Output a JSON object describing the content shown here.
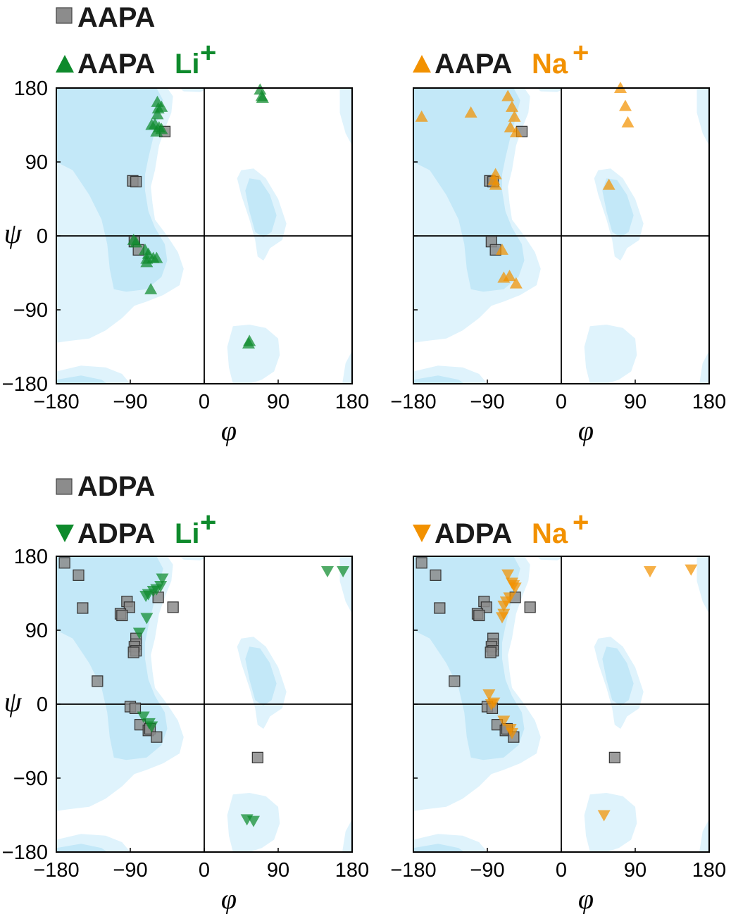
{
  "colors": {
    "gray": "#8c8c8c",
    "green": "#0e8a2c",
    "orange": "#f29100",
    "region_light": "#dff3fc",
    "region_dark": "#c3e8f8"
  },
  "legends": {
    "aapa": "AAPA",
    "aapa_li_prefix": "AAPA",
    "aapa_li_ion": "Li",
    "aapa_na_prefix": "AAPA",
    "aapa_na_ion": "Na",
    "adpa": "ADPA",
    "adpa_li_prefix": "ADPA",
    "adpa_li_ion": "Li",
    "adpa_na_prefix": "ADPA",
    "adpa_na_ion": "Na",
    "charge": "+"
  },
  "axes": {
    "xlabel": "φ",
    "ylabel": "ψ",
    "xticks": [
      "−180",
      "−90",
      "0",
      "90",
      "180"
    ],
    "yticks": [
      "180",
      "90",
      "0",
      "−90",
      "−180"
    ],
    "xlim": [
      -180,
      180
    ],
    "ylim": [
      -180,
      180
    ]
  },
  "chart_data": [
    {
      "type": "scatter",
      "title": "AAPA Li+",
      "xlabel": "φ",
      "ylabel": "ψ",
      "xlim": [
        -180,
        180
      ],
      "ylim": [
        -180,
        180
      ],
      "series": [
        {
          "name": "AAPA",
          "marker": "square",
          "color": "gray",
          "points": [
            [
              -48,
              127
            ],
            [
              -87,
              67
            ],
            [
              -83,
              66
            ],
            [
              -85,
              -7
            ],
            [
              -80,
              -17
            ]
          ]
        },
        {
          "name": "AAPA Li+",
          "marker": "triangle-up",
          "color": "green",
          "points": [
            [
              68,
              178
            ],
            [
              70,
              170
            ],
            [
              71,
              168
            ],
            [
              -57,
              163
            ],
            [
              -56,
              155
            ],
            [
              -52,
              157
            ],
            [
              -57,
              148
            ],
            [
              -60,
              136
            ],
            [
              -64,
              135
            ],
            [
              -55,
              132
            ],
            [
              -52,
              130
            ],
            [
              -58,
              127
            ],
            [
              -86,
              -5
            ],
            [
              -83,
              -8
            ],
            [
              -72,
              -17
            ],
            [
              -68,
              -22
            ],
            [
              -62,
              -27
            ],
            [
              -70,
              -28
            ],
            [
              -70,
              -32
            ],
            [
              -58,
              -27
            ],
            [
              -65,
              -65
            ],
            [
              55,
              -128
            ],
            [
              54,
              -131
            ]
          ]
        }
      ]
    },
    {
      "type": "scatter",
      "title": "AAPA Na+",
      "xlabel": "φ",
      "ylabel": "ψ",
      "xlim": [
        -180,
        180
      ],
      "ylim": [
        -180,
        180
      ],
      "series": [
        {
          "name": "AAPA",
          "marker": "square",
          "color": "gray",
          "points": [
            [
              -48,
              127
            ],
            [
              -87,
              67
            ],
            [
              -83,
              66
            ],
            [
              -85,
              -7
            ],
            [
              -80,
              -17
            ]
          ]
        },
        {
          "name": "AAPA Na+",
          "marker": "triangle-up",
          "color": "orange",
          "points": [
            [
              -170,
              145
            ],
            [
              -110,
              150
            ],
            [
              -65,
              170
            ],
            [
              -60,
              157
            ],
            [
              -57,
              145
            ],
            [
              -62,
              132
            ],
            [
              -55,
              126
            ],
            [
              72,
              180
            ],
            [
              78,
              158
            ],
            [
              81,
              138
            ],
            [
              -80,
              75
            ],
            [
              -82,
              68
            ],
            [
              -80,
              62
            ],
            [
              58,
              62
            ],
            [
              -72,
              -17
            ],
            [
              -70,
              -51
            ],
            [
              -63,
              -49
            ],
            [
              -55,
              -58
            ]
          ]
        }
      ]
    },
    {
      "type": "scatter",
      "title": "ADPA Li+",
      "xlabel": "φ",
      "ylabel": "ψ",
      "xlim": [
        -180,
        180
      ],
      "ylim": [
        -180,
        180
      ],
      "series": [
        {
          "name": "ADPA",
          "marker": "square",
          "color": "gray",
          "points": [
            [
              -170,
              172
            ],
            [
              -153,
              157
            ],
            [
              -148,
              117
            ],
            [
              -130,
              28
            ],
            [
              -94,
              125
            ],
            [
              -91,
              118
            ],
            [
              -102,
              110
            ],
            [
              -100,
              108
            ],
            [
              -56,
              130
            ],
            [
              -38,
              118
            ],
            [
              -83,
              80
            ],
            [
              -83,
              73
            ],
            [
              -85,
              70
            ],
            [
              -83,
              65
            ],
            [
              -86,
              63
            ],
            [
              -90,
              -3
            ],
            [
              -84,
              -5
            ],
            [
              -78,
              -25
            ],
            [
              -68,
              -32
            ],
            [
              -66,
              -30
            ],
            [
              -58,
              -40
            ],
            [
              65,
              -65
            ]
          ]
        },
        {
          "name": "ADPA Li+",
          "marker": "triangle-down",
          "color": "green",
          "points": [
            [
              150,
              162
            ],
            [
              169,
              162
            ],
            [
              -51,
              153
            ],
            [
              -53,
              144
            ],
            [
              -58,
              140
            ],
            [
              -62,
              138
            ],
            [
              -68,
              134
            ],
            [
              -71,
              132
            ],
            [
              -70,
              105
            ],
            [
              -79,
              87
            ],
            [
              -74,
              -15
            ],
            [
              -67,
              -23
            ],
            [
              -64,
              -27
            ],
            [
              52,
              -140
            ],
            [
              60,
              -142
            ]
          ]
        }
      ]
    },
    {
      "type": "scatter",
      "title": "ADPA Na+",
      "xlabel": "φ",
      "ylabel": "ψ",
      "xlim": [
        -180,
        180
      ],
      "ylim": [
        -180,
        180
      ],
      "series": [
        {
          "name": "ADPA",
          "marker": "square",
          "color": "gray",
          "points": [
            [
              -170,
              172
            ],
            [
              -153,
              157
            ],
            [
              -148,
              117
            ],
            [
              -130,
              28
            ],
            [
              -94,
              125
            ],
            [
              -91,
              118
            ],
            [
              -102,
              110
            ],
            [
              -100,
              108
            ],
            [
              -56,
              130
            ],
            [
              -38,
              118
            ],
            [
              65,
              -65
            ],
            [
              -83,
              80
            ],
            [
              -83,
              73
            ],
            [
              -85,
              70
            ],
            [
              -83,
              65
            ],
            [
              -86,
              63
            ],
            [
              -90,
              -3
            ],
            [
              -84,
              -5
            ],
            [
              -78,
              -25
            ],
            [
              -68,
              -32
            ],
            [
              -66,
              -30
            ],
            [
              -58,
              -40
            ]
          ]
        },
        {
          "name": "ADPA Na+",
          "marker": "triangle-down",
          "color": "orange",
          "points": [
            [
              108,
              162
            ],
            [
              158,
              164
            ],
            [
              -65,
              158
            ],
            [
              -60,
              148
            ],
            [
              -58,
              145
            ],
            [
              -56,
              142
            ],
            [
              -63,
              130
            ],
            [
              -67,
              125
            ],
            [
              -70,
              120
            ],
            [
              -70,
              110
            ],
            [
              -72,
              106
            ],
            [
              -88,
              12
            ],
            [
              -82,
              2
            ],
            [
              -85,
              0
            ],
            [
              -70,
              -20
            ],
            [
              -62,
              -30
            ],
            [
              -60,
              -35
            ],
            [
              52,
              -135
            ]
          ]
        }
      ]
    }
  ]
}
